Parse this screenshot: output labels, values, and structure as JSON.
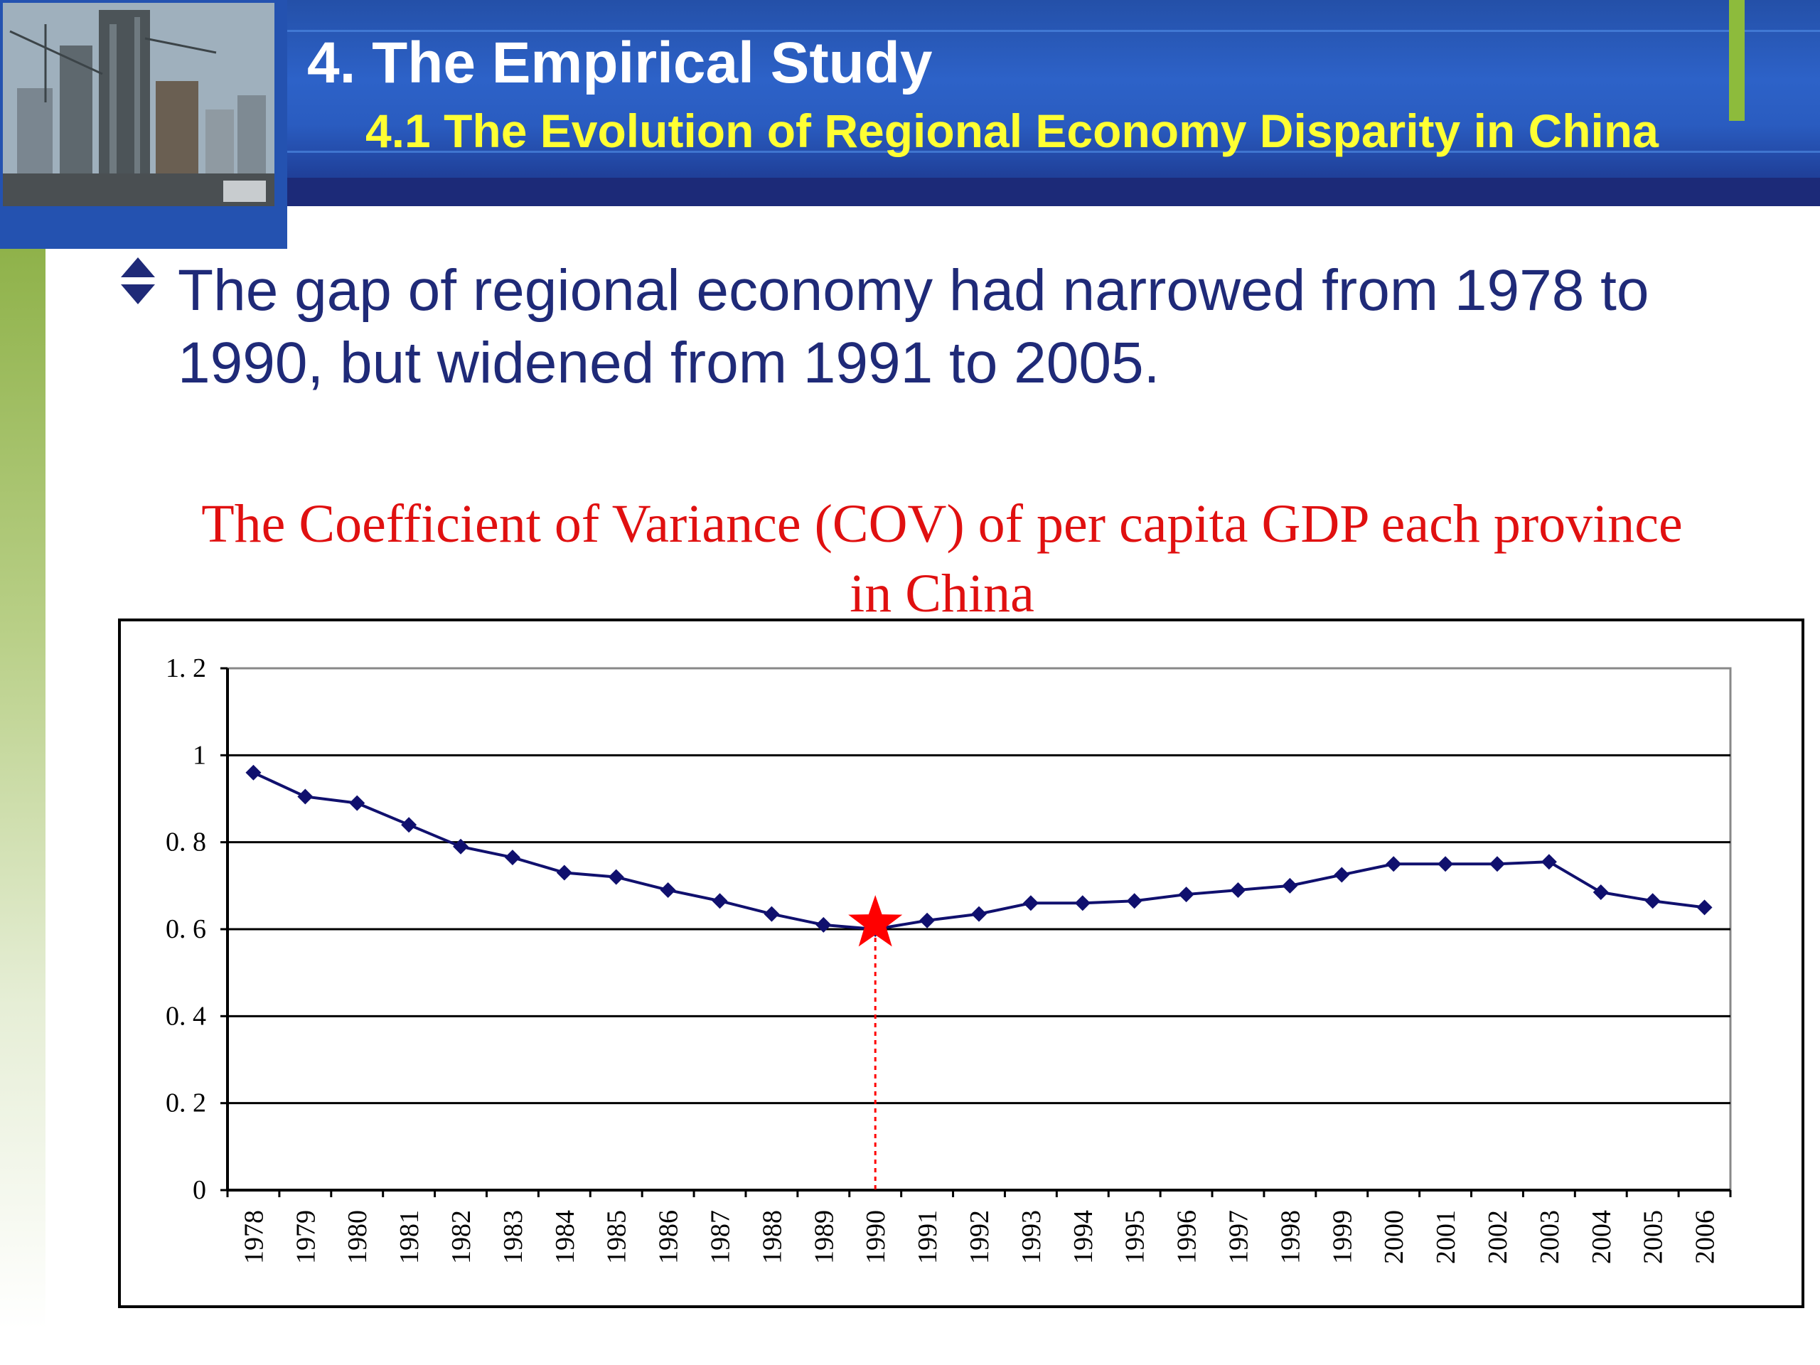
{
  "header": {
    "title": "4. The Empirical Study",
    "subtitle": "4.1  The Evolution of Regional Economy Disparity in China",
    "colors": {
      "band": "#1c2a78",
      "title": "#ffffff",
      "subtitle": "#ffff33",
      "accent": "#8dbb3c"
    }
  },
  "photo": {
    "icon": "city-construction-photo"
  },
  "bullet": {
    "icon": "up-down-diamond-icon",
    "text": "The gap of regional economy had narrowed from 1978 to 1990, but widened from 1991 to 2005."
  },
  "chart_data": {
    "type": "line",
    "title": "The Coefficient of Variance (COV) of per capita GDP each province in China",
    "xlabel": "",
    "ylabel": "",
    "categories": [
      "1978",
      "1979",
      "1980",
      "1981",
      "1982",
      "1983",
      "1984",
      "1985",
      "1986",
      "1987",
      "1988",
      "1989",
      "1990",
      "1991",
      "1992",
      "1993",
      "1994",
      "1995",
      "1996",
      "1997",
      "1998",
      "1999",
      "2000",
      "2001",
      "2002",
      "2003",
      "2004",
      "2005",
      "2006"
    ],
    "series": [
      {
        "values": [
          0.96,
          0.905,
          0.89,
          0.84,
          0.79,
          0.765,
          0.73,
          0.72,
          0.69,
          0.665,
          0.635,
          0.61,
          0.6,
          0.62,
          0.635,
          0.66,
          0.66,
          0.665,
          0.68,
          0.69,
          0.7,
          0.725,
          0.75,
          0.75,
          0.75,
          0.755,
          0.685,
          0.665,
          0.65
        ],
        "color": "#10106e"
      }
    ],
    "yticks": [
      "0",
      "0. 2",
      "0. 4",
      "0. 6",
      "0. 8",
      "1",
      "1. 2"
    ],
    "ylim": [
      0,
      1.2
    ],
    "grid": true,
    "highlight": {
      "category": "1990",
      "value": 0.6,
      "marker": "red-star",
      "color": "#ff0000"
    }
  }
}
